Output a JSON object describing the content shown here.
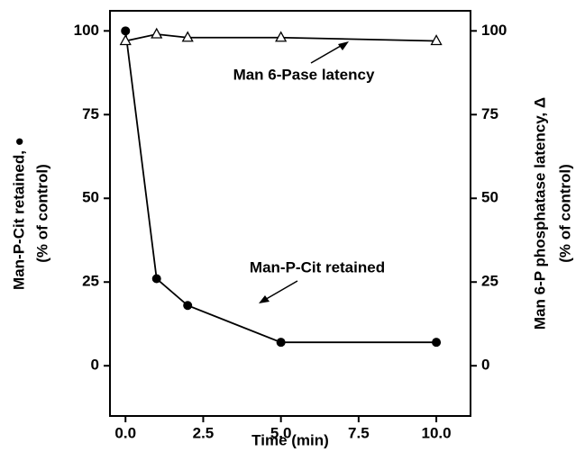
{
  "chart_data": {
    "type": "line",
    "x_label": "Time (min)",
    "y_label": [
      "Man-P-Cit retained, ●",
      "(% of control)"
    ],
    "y2_label": [
      "Man 6-P phosphatase latency, Δ",
      "(% of control)"
    ],
    "annotations": [
      "Man 6-Pase latency",
      "Man-P-Cit retained"
    ],
    "x": [
      0,
      1,
      2,
      5,
      10
    ],
    "series": [
      {
        "name": "Man-P-Cit retained",
        "color": "#000000",
        "marker": "circle",
        "values": [
          100,
          26,
          18,
          7,
          7
        ]
      },
      {
        "name": "Man 6-Pase latency",
        "color": "#000000",
        "marker": "triangle",
        "axis": "y2",
        "values": [
          97,
          99,
          98,
          98,
          97
        ]
      }
    ],
    "xlim": [
      -0.5,
      11.1
    ],
    "xticks": [
      {
        "value": 0,
        "label": "0.0"
      },
      {
        "value": 2.5,
        "label": "2.5"
      },
      {
        "value": 5,
        "label": "5.0"
      },
      {
        "value": 7.5,
        "label": "7.5"
      },
      {
        "value": 10,
        "label": "10.0"
      }
    ],
    "ylim": [
      -15,
      106
    ],
    "yticks": [
      0,
      25,
      50,
      75,
      100
    ],
    "y2lim": [
      -15,
      106
    ],
    "y2ticks": [
      0,
      25,
      50,
      75,
      100
    ]
  }
}
